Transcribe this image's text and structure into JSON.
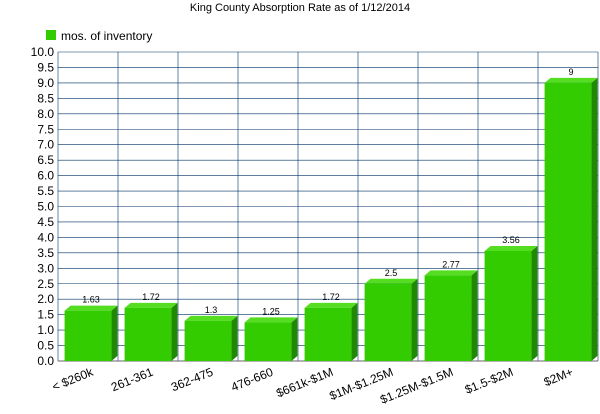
{
  "chart_data": {
    "type": "bar",
    "title": "King County Absorption Rate as of 1/12/2014",
    "categories": [
      "< $260k",
      "261-361",
      "362-475",
      "476-660",
      "$661k-$1M",
      "$1M-$1.25M",
      "$1.25M-$1.5M",
      "$1.5-$2M",
      "$2M+"
    ],
    "series": [
      {
        "name": "mos. of inventory",
        "values": [
          1.63,
          1.72,
          1.3,
          1.25,
          1.72,
          2.5,
          2.77,
          3.56,
          9
        ]
      }
    ],
    "data_labels": [
      "1.63",
      "1.72",
      "1.3",
      "1.25",
      "1.72",
      "2.5",
      "2.77",
      "3.56",
      "9"
    ],
    "ylim": [
      0,
      10
    ],
    "y_ticks": [
      "0.0",
      "0.5",
      "1.0",
      "1.5",
      "2.0",
      "2.5",
      "3.0",
      "3.5",
      "4.0",
      "4.5",
      "5.0",
      "5.5",
      "6.0",
      "6.5",
      "7.0",
      "7.5",
      "8.0",
      "8.5",
      "9.0",
      "9.5",
      "10.0"
    ],
    "xlabel": "",
    "ylabel": "",
    "grid": true,
    "legend": "top-left",
    "colors": {
      "bar_front": "#33cc00",
      "bar_side": "#1f8a00",
      "bar_top": "#55dd22",
      "grid": "#003366"
    }
  }
}
